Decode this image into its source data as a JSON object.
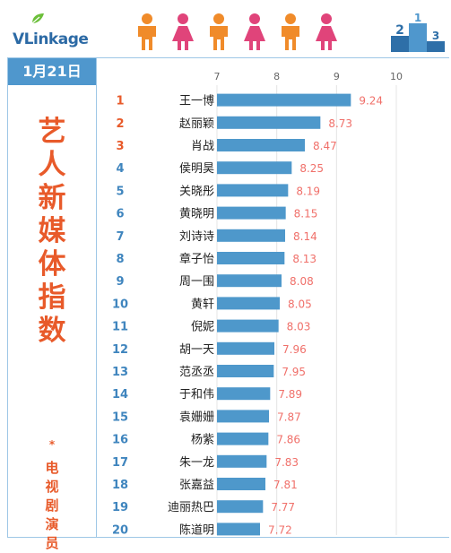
{
  "brand": {
    "name": "VLinkage"
  },
  "date": "1月21日",
  "title_chars": [
    "艺",
    "人",
    "新",
    "媒",
    "体",
    "指",
    "数"
  ],
  "subtitle_star": "*",
  "subtitle_chars": [
    "电",
    "视",
    "剧",
    "演",
    "员"
  ],
  "colors": {
    "bar": "#4e98cb",
    "value_label": "#f0706a",
    "rank_top": "#e85a2a",
    "rank_rest": "#3f85be",
    "header_bg": "#4f97cd",
    "title": "#e85a2a",
    "person_orange": "#f08b2a",
    "person_pink": "#e0447a"
  },
  "icons": [
    "person-orange-icon",
    "person-pink-icon",
    "podium-icon",
    "leaf-icon"
  ],
  "chart_data": {
    "type": "bar",
    "orientation": "horizontal",
    "xlim": [
      7,
      10
    ],
    "xticks": [
      "7",
      "8",
      "9",
      "10"
    ],
    "grid": true,
    "ranks": [
      "1",
      "2",
      "3",
      "4",
      "5",
      "6",
      "7",
      "8",
      "9",
      "10",
      "11",
      "12",
      "13",
      "14",
      "15",
      "16",
      "17",
      "18",
      "19",
      "20"
    ],
    "categories": [
      "王一博",
      "赵丽颖",
      "肖战",
      "侯明昊",
      "关晓彤",
      "黄晓明",
      "刘诗诗",
      "章子怡",
      "周一围",
      "黄轩",
      "倪妮",
      "胡一天",
      "范丞丞",
      "于和伟",
      "袁姗姗",
      "杨紫",
      "朱一龙",
      "张嘉益",
      "迪丽热巴",
      "陈道明"
    ],
    "values": [
      9.24,
      8.73,
      8.47,
      8.25,
      8.19,
      8.15,
      8.14,
      8.13,
      8.08,
      8.05,
      8.03,
      7.96,
      7.95,
      7.89,
      7.87,
      7.86,
      7.83,
      7.81,
      7.77,
      7.72
    ],
    "value_labels": [
      "9.24",
      "8.73",
      "8.47",
      "8.25",
      "8.19",
      "8.15",
      "8.14",
      "8.13",
      "8.08",
      "8.05",
      "8.03",
      "7.96",
      "7.95",
      "7.89",
      "7.87",
      "7.86",
      "7.83",
      "7.81",
      "7.77",
      "7.72"
    ]
  }
}
